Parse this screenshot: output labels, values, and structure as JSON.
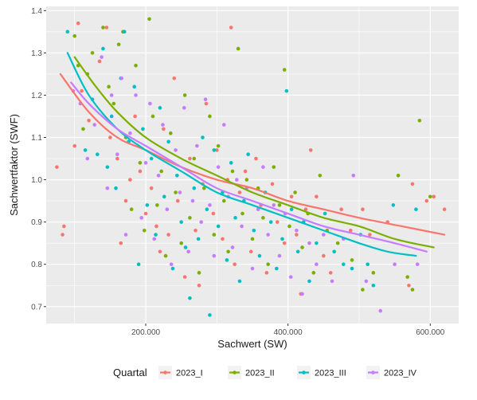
{
  "chart_data": {
    "type": "scatter",
    "xlabel": "Sachwert (SW)",
    "ylabel": "Sachwertfaktor (SWF)",
    "xlim": [
      60000,
      640000
    ],
    "ylim": [
      0.66,
      1.41
    ],
    "x_ticks": [
      200000,
      400000,
      600000
    ],
    "x_tick_labels": [
      "200.000",
      "400.000",
      "600.000"
    ],
    "y_ticks": [
      0.7,
      0.8,
      0.9,
      1.0,
      1.1,
      1.2,
      1.3,
      1.4
    ],
    "y_tick_labels": [
      "0.7",
      "0.8",
      "0.9",
      "1.0",
      "1.1",
      "1.2",
      "1.3",
      "1.4"
    ],
    "grid": true,
    "legend": {
      "title": "Quartal",
      "position": "bottom"
    },
    "series": [
      {
        "name": "2023_I",
        "color": "#F8766D",
        "trend": [
          [
            80000,
            1.25
          ],
          [
            120000,
            1.16
          ],
          [
            160000,
            1.1
          ],
          [
            200000,
            1.07
          ],
          [
            250000,
            1.03
          ],
          [
            300000,
            1.0
          ],
          [
            350000,
            0.98
          ],
          [
            400000,
            0.95
          ],
          [
            450000,
            0.93
          ],
          [
            500000,
            0.91
          ],
          [
            560000,
            0.89
          ],
          [
            620000,
            0.87
          ]
        ],
        "points": [
          [
            75000,
            1.03
          ],
          [
            85000,
            0.89
          ],
          [
            83000,
            0.87
          ],
          [
            100000,
            1.08
          ],
          [
            105000,
            1.37
          ],
          [
            110000,
            1.21
          ],
          [
            120000,
            1.14
          ],
          [
            135000,
            1.28
          ],
          [
            145000,
            1.36
          ],
          [
            150000,
            1.1
          ],
          [
            160000,
            1.05
          ],
          [
            165000,
            0.85
          ],
          [
            172000,
            0.95
          ],
          [
            178000,
            1.0
          ],
          [
            185000,
            1.15
          ],
          [
            192000,
            1.02
          ],
          [
            200000,
            0.92
          ],
          [
            208000,
            0.98
          ],
          [
            215000,
            0.89
          ],
          [
            220000,
            0.83
          ],
          [
            225000,
            1.12
          ],
          [
            232000,
            0.87
          ],
          [
            240000,
            1.24
          ],
          [
            245000,
            0.95
          ],
          [
            255000,
            0.77
          ],
          [
            262000,
            1.05
          ],
          [
            270000,
            0.88
          ],
          [
            275000,
            0.75
          ],
          [
            280000,
            0.99
          ],
          [
            285000,
            1.18
          ],
          [
            295000,
            0.92
          ],
          [
            300000,
            1.07
          ],
          [
            308000,
            0.86
          ],
          [
            315000,
            1.0
          ],
          [
            320000,
            1.36
          ],
          [
            325000,
            0.8
          ],
          [
            332000,
            0.97
          ],
          [
            340000,
            1.02
          ],
          [
            348000,
            0.83
          ],
          [
            355000,
            1.05
          ],
          [
            362000,
            0.94
          ],
          [
            370000,
            0.78
          ],
          [
            378000,
            0.99
          ],
          [
            385000,
            0.9
          ],
          [
            395000,
            0.85
          ],
          [
            405000,
            0.96
          ],
          [
            412000,
            0.87
          ],
          [
            418000,
            0.73
          ],
          [
            425000,
            0.93
          ],
          [
            432000,
            1.07
          ],
          [
            440000,
            0.96
          ],
          [
            450000,
            0.82
          ],
          [
            460000,
            0.78
          ],
          [
            475000,
            0.93
          ],
          [
            488000,
            0.88
          ],
          [
            505000,
            0.93
          ],
          [
            515000,
            0.87
          ],
          [
            540000,
            0.9
          ],
          [
            570000,
            0.75
          ],
          [
            575000,
            0.99
          ],
          [
            595000,
            0.95
          ],
          [
            605000,
            0.96
          ],
          [
            620000,
            0.93
          ]
        ]
      },
      {
        "name": "2023_II",
        "color": "#7CAE00",
        "trend": [
          [
            100000,
            1.29
          ],
          [
            130000,
            1.22
          ],
          [
            160000,
            1.16
          ],
          [
            200000,
            1.1
          ],
          [
            250000,
            1.05
          ],
          [
            300000,
            1.01
          ],
          [
            350000,
            0.97
          ],
          [
            400000,
            0.94
          ],
          [
            450000,
            0.91
          ],
          [
            500000,
            0.89
          ],
          [
            550000,
            0.86
          ],
          [
            605000,
            0.84
          ]
        ],
        "points": [
          [
            100000,
            1.34
          ],
          [
            105000,
            1.27
          ],
          [
            112000,
            1.12
          ],
          [
            118000,
            1.25
          ],
          [
            125000,
            1.3
          ],
          [
            140000,
            1.36
          ],
          [
            148000,
            1.22
          ],
          [
            155000,
            1.18
          ],
          [
            162000,
            1.32
          ],
          [
            168000,
            1.35
          ],
          [
            172000,
            1.1
          ],
          [
            180000,
            0.93
          ],
          [
            186000,
            1.27
          ],
          [
            192000,
            1.04
          ],
          [
            198000,
            0.88
          ],
          [
            205000,
            1.38
          ],
          [
            210000,
            1.15
          ],
          [
            216000,
            0.94
          ],
          [
            222000,
            1.02
          ],
          [
            228000,
            0.82
          ],
          [
            235000,
            1.11
          ],
          [
            242000,
            0.97
          ],
          [
            250000,
            0.85
          ],
          [
            255000,
            1.2
          ],
          [
            262000,
            0.91
          ],
          [
            268000,
            1.05
          ],
          [
            275000,
            0.78
          ],
          [
            282000,
            0.98
          ],
          [
            290000,
            1.15
          ],
          [
            296000,
            0.87
          ],
          [
            302000,
            1.08
          ],
          [
            310000,
            0.95
          ],
          [
            316000,
            0.83
          ],
          [
            322000,
            1.02
          ],
          [
            330000,
            1.31
          ],
          [
            336000,
            0.92
          ],
          [
            342000,
            1.0
          ],
          [
            350000,
            0.86
          ],
          [
            358000,
            0.98
          ],
          [
            365000,
            0.91
          ],
          [
            372000,
            0.8
          ],
          [
            380000,
            1.03
          ],
          [
            388000,
            0.94
          ],
          [
            395000,
            1.26
          ],
          [
            402000,
            0.89
          ],
          [
            410000,
            0.97
          ],
          [
            420000,
            0.84
          ],
          [
            428000,
            0.92
          ],
          [
            436000,
            0.78
          ],
          [
            445000,
            1.01
          ],
          [
            455000,
            0.88
          ],
          [
            470000,
            0.85
          ],
          [
            490000,
            0.81
          ],
          [
            505000,
            0.74
          ],
          [
            520000,
            0.78
          ],
          [
            555000,
            1.01
          ],
          [
            568000,
            0.77
          ],
          [
            575000,
            0.74
          ],
          [
            585000,
            1.14
          ],
          [
            600000,
            0.96
          ]
        ]
      },
      {
        "name": "2023_III",
        "color": "#00BFC4",
        "trend": [
          [
            90000,
            1.3
          ],
          [
            120000,
            1.2
          ],
          [
            160000,
            1.12
          ],
          [
            200000,
            1.07
          ],
          [
            250000,
            1.02
          ],
          [
            300000,
            0.97
          ],
          [
            350000,
            0.94
          ],
          [
            400000,
            0.91
          ],
          [
            450000,
            0.88
          ],
          [
            500000,
            0.85
          ],
          [
            540000,
            0.83
          ],
          [
            580000,
            0.82
          ]
        ],
        "points": [
          [
            90000,
            1.35
          ],
          [
            115000,
            1.07
          ],
          [
            125000,
            1.19
          ],
          [
            132000,
            1.06
          ],
          [
            140000,
            1.31
          ],
          [
            146000,
            1.03
          ],
          [
            152000,
            1.15
          ],
          [
            158000,
            0.98
          ],
          [
            165000,
            1.24
          ],
          [
            170000,
            1.35
          ],
          [
            176000,
            1.09
          ],
          [
            184000,
            1.22
          ],
          [
            190000,
            0.8
          ],
          [
            196000,
            1.12
          ],
          [
            202000,
            0.94
          ],
          [
            208000,
            1.05
          ],
          [
            214000,
            0.87
          ],
          [
            220000,
            1.17
          ],
          [
            226000,
            0.96
          ],
          [
            232000,
            1.09
          ],
          [
            238000,
            0.79
          ],
          [
            244000,
            1.01
          ],
          [
            250000,
            0.9
          ],
          [
            256000,
            0.84
          ],
          [
            262000,
            0.72
          ],
          [
            268000,
            0.98
          ],
          [
            274000,
            0.86
          ],
          [
            280000,
            1.1
          ],
          [
            286000,
            0.93
          ],
          [
            290000,
            0.68
          ],
          [
            296000,
            1.07
          ],
          [
            302000,
            0.89
          ],
          [
            308000,
            0.97
          ],
          [
            314000,
            0.81
          ],
          [
            320000,
            1.04
          ],
          [
            326000,
            0.91
          ],
          [
            332000,
            0.76
          ],
          [
            338000,
            0.95
          ],
          [
            344000,
            1.06
          ],
          [
            352000,
            0.88
          ],
          [
            360000,
            0.82
          ],
          [
            368000,
            0.97
          ],
          [
            376000,
            0.9
          ],
          [
            384000,
            0.79
          ],
          [
            392000,
            0.86
          ],
          [
            398000,
            1.21
          ],
          [
            405000,
            0.93
          ],
          [
            414000,
            0.83
          ],
          [
            422000,
            0.9
          ],
          [
            430000,
            0.76
          ],
          [
            440000,
            0.85
          ],
          [
            452000,
            0.92
          ],
          [
            465000,
            0.83
          ],
          [
            478000,
            0.8
          ],
          [
            490000,
            0.79
          ],
          [
            502000,
            0.87
          ],
          [
            512000,
            0.8
          ],
          [
            520000,
            0.75
          ],
          [
            548000,
            0.94
          ],
          [
            580000,
            0.93
          ]
        ]
      },
      {
        "name": "2023_IV",
        "color": "#C77CFF",
        "trend": [
          [
            95000,
            1.23
          ],
          [
            120000,
            1.18
          ],
          [
            160000,
            1.12
          ],
          [
            200000,
            1.08
          ],
          [
            250000,
            1.03
          ],
          [
            300000,
            0.98
          ],
          [
            350000,
            0.95
          ],
          [
            400000,
            0.92
          ],
          [
            450000,
            0.89
          ],
          [
            500000,
            0.87
          ],
          [
            550000,
            0.85
          ],
          [
            595000,
            0.83
          ]
        ],
        "points": [
          [
            98000,
            1.21
          ],
          [
            108000,
            1.18
          ],
          [
            118000,
            1.05
          ],
          [
            128000,
            1.13
          ],
          [
            138000,
            1.29
          ],
          [
            146000,
            0.98
          ],
          [
            152000,
            1.2
          ],
          [
            160000,
            1.06
          ],
          [
            166000,
            1.24
          ],
          [
            172000,
            0.87
          ],
          [
            178000,
            1.11
          ],
          [
            186000,
            1.2
          ],
          [
            194000,
            0.91
          ],
          [
            200000,
            1.04
          ],
          [
            206000,
            1.18
          ],
          [
            212000,
            0.86
          ],
          [
            218000,
            1.01
          ],
          [
            224000,
            1.13
          ],
          [
            230000,
            0.93
          ],
          [
            236000,
            0.8
          ],
          [
            242000,
            1.07
          ],
          [
            248000,
            0.97
          ],
          [
            254000,
            1.17
          ],
          [
            260000,
            0.83
          ],
          [
            266000,
            0.95
          ],
          [
            272000,
            1.08
          ],
          [
            278000,
            0.9
          ],
          [
            284000,
            1.19
          ],
          [
            290000,
            0.94
          ],
          [
            296000,
            0.82
          ],
          [
            302000,
            1.03
          ],
          [
            310000,
            1.13
          ],
          [
            316000,
            0.96
          ],
          [
            322000,
            0.84
          ],
          [
            328000,
            1.0
          ],
          [
            335000,
            0.89
          ],
          [
            342000,
            0.98
          ],
          [
            350000,
            0.79
          ],
          [
            358000,
            0.93
          ],
          [
            365000,
            1.03
          ],
          [
            372000,
            0.87
          ],
          [
            380000,
            0.94
          ],
          [
            388000,
            0.82
          ],
          [
            396000,
            0.92
          ],
          [
            404000,
            0.77
          ],
          [
            412000,
            0.88
          ],
          [
            420000,
            0.73
          ],
          [
            430000,
            0.85
          ],
          [
            440000,
            0.8
          ],
          [
            450000,
            0.87
          ],
          [
            462000,
            0.76
          ],
          [
            478000,
            0.86
          ],
          [
            492000,
            1.01
          ],
          [
            510000,
            0.76
          ],
          [
            530000,
            0.69
          ],
          [
            550000,
            0.8
          ],
          [
            582000,
            0.8
          ]
        ]
      }
    ]
  }
}
